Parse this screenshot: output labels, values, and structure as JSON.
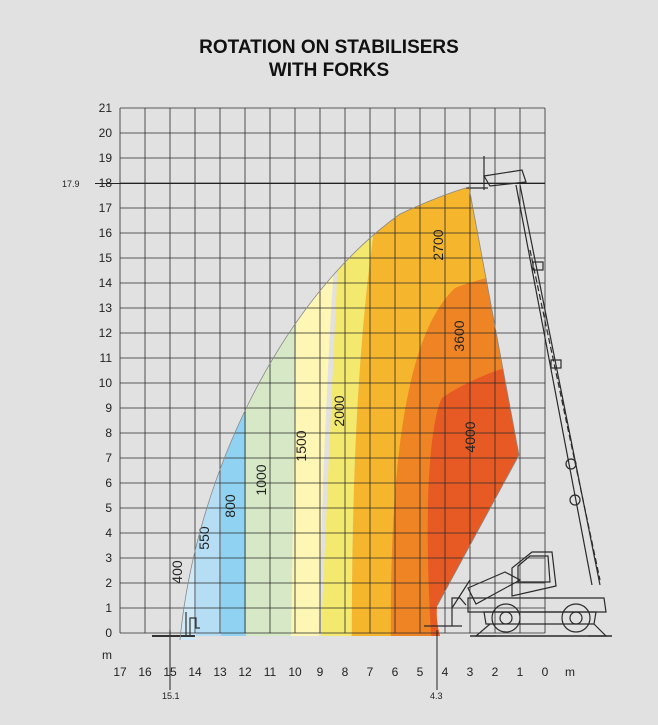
{
  "chart_data": {
    "type": "area",
    "title_line1": "ROTATION ON STABILISERS",
    "title_line2": "WITH FORKS",
    "x_unit": "m",
    "y_unit": "m",
    "xlim": [
      17,
      0
    ],
    "ylim": [
      0,
      21
    ],
    "x_ticks": [
      "17",
      "16",
      "15",
      "14",
      "13",
      "12",
      "11",
      "10",
      "9",
      "8",
      "7",
      "6",
      "5",
      "4",
      "3",
      "2",
      "1",
      "0"
    ],
    "y_ticks": [
      "0",
      "1",
      "2",
      "3",
      "4",
      "5",
      "6",
      "7",
      "8",
      "9",
      "10",
      "11",
      "12",
      "13",
      "14",
      "15",
      "16",
      "17",
      "18",
      "19",
      "20",
      "21"
    ],
    "annotations": {
      "max_height": "17.9",
      "max_reach": "15.1",
      "min_reach": "4.3"
    },
    "load_zones": [
      {
        "label": "400",
        "color": "#cfe9f7"
      },
      {
        "label": "550",
        "color": "#b5def4"
      },
      {
        "label": "800",
        "color": "#8fd2f1"
      },
      {
        "label": "1000",
        "color": "#d6e8c6"
      },
      {
        "label": "1500",
        "color": "#fdf6b4"
      },
      {
        "label": "2000",
        "color": "#f3e96f"
      },
      {
        "label": "2700",
        "color": "#f5b62d"
      },
      {
        "label": "3600",
        "color": "#ef8425"
      },
      {
        "label": "4000",
        "color": "#e85a24"
      }
    ]
  }
}
